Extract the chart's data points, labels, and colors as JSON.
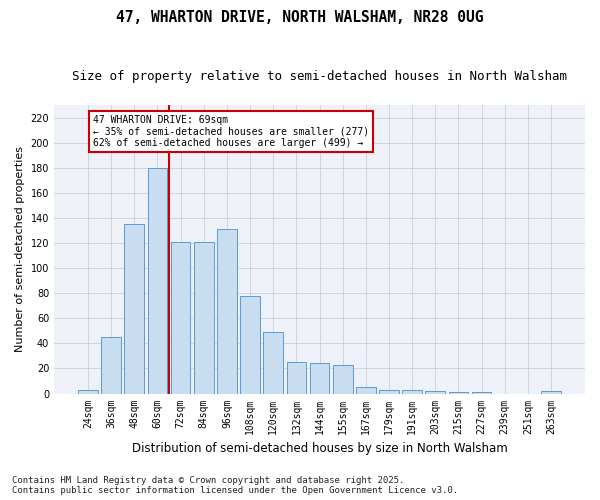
{
  "title": "47, WHARTON DRIVE, NORTH WALSHAM, NR28 0UG",
  "subtitle": "Size of property relative to semi-detached houses in North Walsham",
  "xlabel": "Distribution of semi-detached houses by size in North Walsham",
  "ylabel": "Number of semi-detached properties",
  "categories": [
    "24sqm",
    "36sqm",
    "48sqm",
    "60sqm",
    "72sqm",
    "84sqm",
    "96sqm",
    "108sqm",
    "120sqm",
    "132sqm",
    "144sqm",
    "155sqm",
    "167sqm",
    "179sqm",
    "191sqm",
    "203sqm",
    "215sqm",
    "227sqm",
    "239sqm",
    "251sqm",
    "263sqm"
  ],
  "values": [
    3,
    45,
    135,
    180,
    121,
    121,
    131,
    78,
    49,
    25,
    24,
    23,
    5,
    3,
    3,
    2,
    1,
    1,
    0,
    0,
    2
  ],
  "bar_color": "#c9ddf0",
  "bar_edge_color": "#5a9ad5",
  "vline_x": 3.5,
  "vline_color": "#cc0000",
  "ylim": [
    0,
    230
  ],
  "yticks": [
    0,
    20,
    40,
    60,
    80,
    100,
    120,
    140,
    160,
    180,
    200,
    220
  ],
  "annotation_title": "47 WHARTON DRIVE: 69sqm",
  "annotation_line1": "← 35% of semi-detached houses are smaller (277)",
  "annotation_line2": "62% of semi-detached houses are larger (499) →",
  "annotation_box_color": "#ffffff",
  "annotation_box_edge": "#cc0000",
  "footer1": "Contains HM Land Registry data © Crown copyright and database right 2025.",
  "footer2": "Contains public sector information licensed under the Open Government Licence v3.0.",
  "bg_color": "#ffffff",
  "plot_bg_color": "#eef2f8",
  "title_fontsize": 10.5,
  "subtitle_fontsize": 9,
  "tick_fontsize": 7,
  "ylabel_fontsize": 8,
  "xlabel_fontsize": 8.5,
  "footer_fontsize": 6.5
}
